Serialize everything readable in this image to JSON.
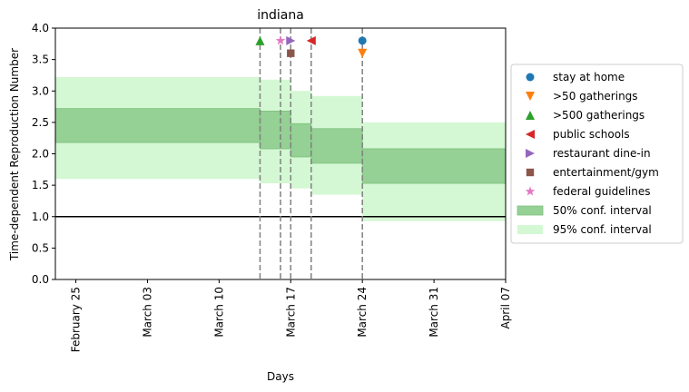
{
  "chart_data": {
    "type": "line",
    "title": "indiana",
    "xlabel": "Days",
    "ylabel": "Time-dependent Reproduction Number",
    "xlim": [
      "2020-02-23",
      "2020-04-07"
    ],
    "ylim": [
      0,
      4.0
    ],
    "xticks": [
      {
        "date": "2020-02-25",
        "label": "February 25"
      },
      {
        "date": "2020-03-03",
        "label": "March 03"
      },
      {
        "date": "2020-03-10",
        "label": "March 10"
      },
      {
        "date": "2020-03-17",
        "label": "March 17"
      },
      {
        "date": "2020-03-24",
        "label": "March 24"
      },
      {
        "date": "2020-03-31",
        "label": "March 31"
      },
      {
        "date": "2020-04-07",
        "label": "April 07"
      }
    ],
    "yticks": [
      "0.0",
      "0.5",
      "1.0",
      "1.5",
      "2.0",
      "2.5",
      "3.0",
      "3.5",
      "4.0"
    ],
    "reference_line": 1.0,
    "intervals": [
      {
        "start": "2020-02-23",
        "end": "2020-03-14",
        "ci50": [
          2.18,
          2.72
        ],
        "ci95": [
          1.6,
          3.22
        ]
      },
      {
        "start": "2020-03-14",
        "end": "2020-03-17",
        "ci50": [
          2.08,
          2.68
        ],
        "ci95": [
          1.53,
          3.18
        ]
      },
      {
        "start": "2020-03-17",
        "end": "2020-03-19",
        "ci50": [
          1.95,
          2.48
        ],
        "ci95": [
          1.45,
          3.0
        ]
      },
      {
        "start": "2020-03-19",
        "end": "2020-03-24",
        "ci50": [
          1.85,
          2.4
        ],
        "ci95": [
          1.35,
          2.92
        ]
      },
      {
        "start": "2020-03-24",
        "end": "2020-04-07",
        "ci50": [
          1.53,
          2.08
        ],
        "ci95": [
          0.93,
          2.5
        ]
      }
    ],
    "interventions": [
      {
        "date": "2020-03-24",
        "y": 3.8,
        "series": "stay at home"
      },
      {
        "date": "2020-03-24",
        "y": 3.6,
        "series": ">50 gatherings"
      },
      {
        "date": "2020-03-14",
        "y": 3.8,
        "series": ">500 gatherings"
      },
      {
        "date": "2020-03-19",
        "y": 3.8,
        "series": "public schools"
      },
      {
        "date": "2020-03-17",
        "y": 3.8,
        "series": "restaurant dine-in"
      },
      {
        "date": "2020-03-17",
        "y": 3.6,
        "series": "entertainment/gym"
      },
      {
        "date": "2020-03-16",
        "y": 3.8,
        "series": "federal guidelines"
      }
    ],
    "vlines": [
      "2020-03-14",
      "2020-03-16",
      "2020-03-17",
      "2020-03-19",
      "2020-03-24"
    ],
    "legend": {
      "placement": "outside-right",
      "entries": [
        {
          "label": "stay at home",
          "marker": "circle",
          "color": "#1f77b4"
        },
        {
          "label": ">50 gatherings",
          "marker": "triangle-down",
          "color": "#ff7f0e"
        },
        {
          "label": ">500 gatherings",
          "marker": "triangle-up",
          "color": "#2ca02c"
        },
        {
          "label": "public schools",
          "marker": "triangle-left",
          "color": "#d62728"
        },
        {
          "label": "restaurant dine-in",
          "marker": "triangle-right",
          "color": "#9467bd"
        },
        {
          "label": "entertainment/gym",
          "marker": "square",
          "color": "#8c564b"
        },
        {
          "label": "federal guidelines",
          "marker": "star",
          "color": "#e377c2"
        },
        {
          "label": "50% conf. interval",
          "marker": "patch",
          "color": "#95d095"
        },
        {
          "label": "95% conf. interval",
          "marker": "patch",
          "color": "#d3f8d3"
        }
      ]
    },
    "colors": {
      "ci50": "#95d095",
      "ci50_edge": "#7cc07c",
      "ci95": "#d3f8d3",
      "vline": "#808080",
      "refline": "#000000"
    }
  }
}
